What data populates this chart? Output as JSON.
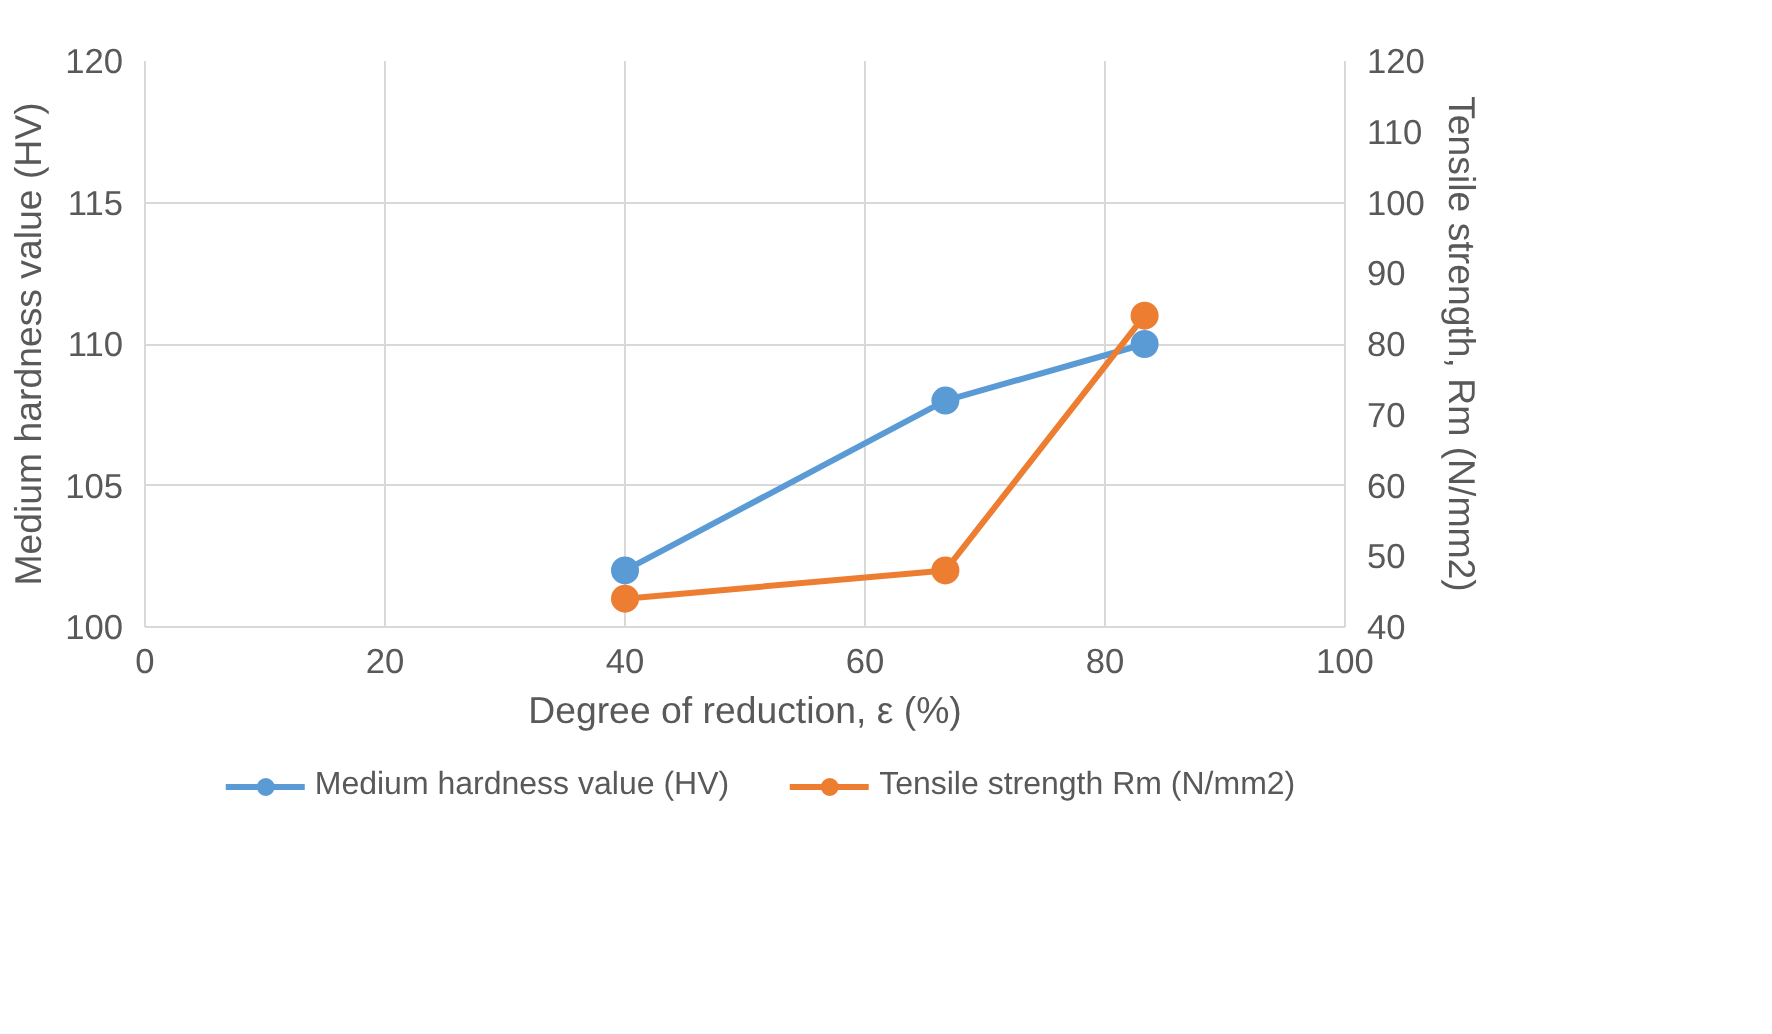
{
  "chart_data": {
    "type": "line",
    "xlabel": "Degree of reduction, ε (%)",
    "ylabel": "Medium hardness value (HV)",
    "y2label": "Tensile strength, Rm (N/mm2)",
    "x": [
      40,
      66.7,
      83.3
    ],
    "series": [
      {
        "name": "Medium hardness value (HV)",
        "color": "#5b9bd5",
        "values": [
          102,
          108,
          110
        ]
      },
      {
        "name": "Tensile strength Rm (N/mm2)",
        "color": "#ed7d31",
        "values": [
          44,
          48,
          84
        ],
        "axis": "y2"
      }
    ],
    "xlim": [
      0,
      100
    ],
    "xticks": [
      0,
      20,
      40,
      60,
      80,
      100
    ],
    "ylim": [
      100,
      120
    ],
    "yticks": [
      100,
      105,
      110,
      115,
      120
    ],
    "y2lim": [
      40,
      120
    ],
    "y2ticks": [
      40,
      50,
      60,
      70,
      80,
      90,
      100,
      110,
      120
    ],
    "grid": true,
    "legend": "bottom",
    "marker": "circle",
    "line_style": "solid"
  }
}
